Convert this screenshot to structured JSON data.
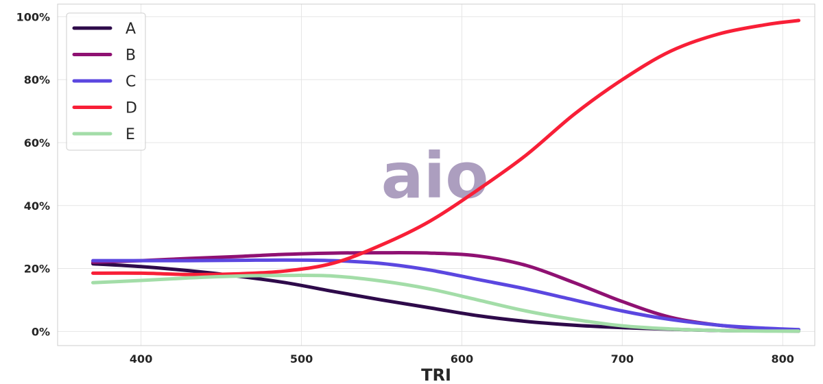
{
  "chart_data": {
    "type": "line",
    "title": "",
    "xlabel": "TRI",
    "ylabel": "",
    "xlim": [
      348,
      820
    ],
    "ylim": [
      -0.045,
      1.04
    ],
    "xticks": [
      400,
      500,
      600,
      700,
      800
    ],
    "xtick_labels": [
      "400",
      "500",
      "600",
      "700",
      "800"
    ],
    "yticks": [
      0,
      0.2,
      0.4,
      0.6,
      0.8,
      1.0
    ],
    "ytick_labels": [
      "0%",
      "20%",
      "40%",
      "60%",
      "80%",
      "100%"
    ],
    "grid": true,
    "legend_position": "top-left",
    "x": [
      370,
      400,
      430,
      460,
      490,
      520,
      550,
      580,
      610,
      640,
      670,
      700,
      730,
      760,
      790,
      810
    ],
    "series": [
      {
        "name": "A",
        "color": "#2e0a4a",
        "values": [
          0.215,
          0.206,
          0.193,
          0.176,
          0.155,
          0.127,
          0.1,
          0.075,
          0.05,
          0.032,
          0.02,
          0.012,
          0.007,
          0.003,
          0.002,
          0.001
        ]
      },
      {
        "name": "B",
        "color": "#8f1172",
        "values": [
          0.22,
          0.225,
          0.232,
          0.238,
          0.245,
          0.249,
          0.25,
          0.249,
          0.24,
          0.21,
          0.155,
          0.095,
          0.045,
          0.02,
          0.008,
          0.005
        ]
      },
      {
        "name": "C",
        "color": "#5b47e0",
        "values": [
          0.225,
          0.225,
          0.225,
          0.226,
          0.227,
          0.225,
          0.216,
          0.195,
          0.165,
          0.135,
          0.1,
          0.065,
          0.038,
          0.02,
          0.01,
          0.006
        ]
      },
      {
        "name": "D",
        "color": "#f81f37",
        "values": [
          0.185,
          0.185,
          0.181,
          0.183,
          0.192,
          0.217,
          0.275,
          0.35,
          0.45,
          0.56,
          0.69,
          0.8,
          0.89,
          0.945,
          0.975,
          0.988
        ]
      },
      {
        "name": "E",
        "color": "#a3dda8",
        "values": [
          0.155,
          0.162,
          0.17,
          0.176,
          0.178,
          0.176,
          0.16,
          0.135,
          0.1,
          0.065,
          0.038,
          0.018,
          0.008,
          0.003,
          0.001,
          0.001
        ]
      }
    ]
  },
  "watermark": {
    "text": "aio",
    "color": "#ac9ebf"
  }
}
